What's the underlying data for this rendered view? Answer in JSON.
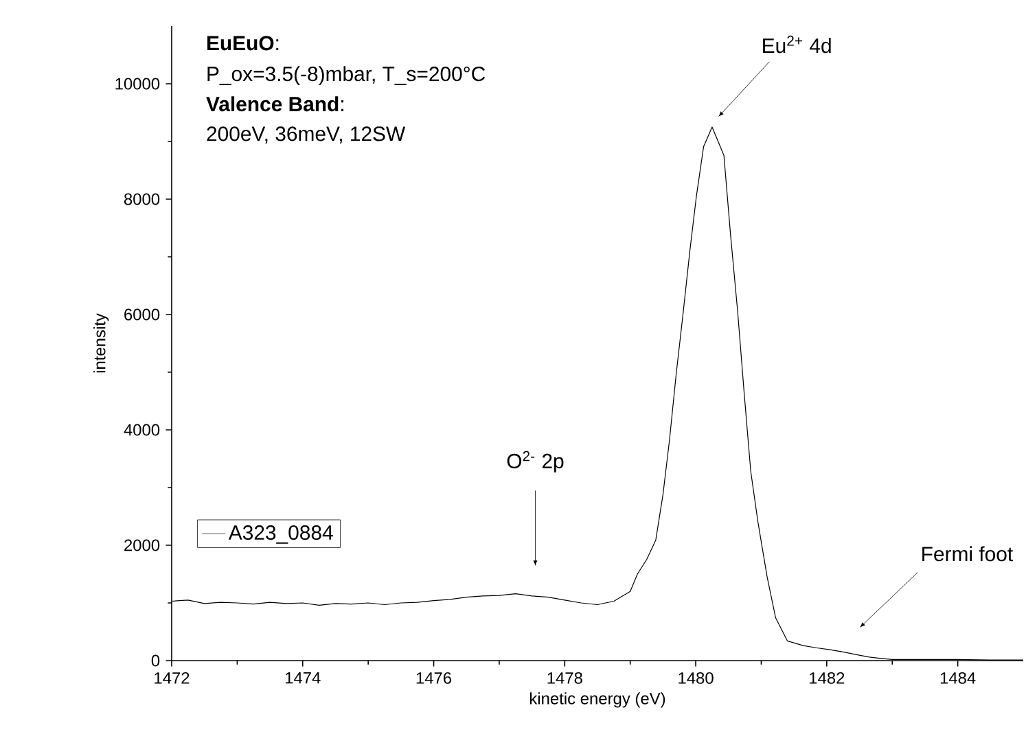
{
  "chart_data": {
    "type": "line",
    "xlabel": "kinetic energy (eV)",
    "ylabel": "intensity",
    "xlim": [
      1472,
      1485
    ],
    "ylim": [
      0,
      11000
    ],
    "xticks": [
      1472,
      1474,
      1476,
      1478,
      1480,
      1482,
      1484
    ],
    "yticks": [
      0,
      2000,
      4000,
      6000,
      8000,
      10000
    ],
    "legend": "left",
    "grid": false,
    "marker": "none",
    "line_style": "solid",
    "annotations": [
      "**EuEuO**:",
      "P_ox=3.5(-8)mbar, T_s=200°C",
      "**Valence Band**:",
      "200eV, 36meV, 12SW",
      "Eu$^{2+}$ 4d",
      "O$^{2-}$ 2p",
      "Fermi foot"
    ],
    "series": [
      {
        "name": "A323_0884",
        "color": "#000000",
        "x": [
          1472.0,
          1472.25,
          1472.5,
          1472.75,
          1473.0,
          1473.25,
          1473.5,
          1473.75,
          1474.0,
          1474.25,
          1474.5,
          1474.75,
          1475.0,
          1475.25,
          1475.5,
          1475.75,
          1476.0,
          1476.25,
          1476.5,
          1476.75,
          1477.0,
          1477.25,
          1477.5,
          1477.75,
          1478.0,
          1478.25,
          1478.5,
          1478.75,
          1479.0,
          1479.11,
          1479.25,
          1479.39,
          1479.5,
          1479.6,
          1479.7,
          1479.81,
          1479.91,
          1480.01,
          1480.12,
          1480.25,
          1480.43,
          1480.53,
          1480.64,
          1480.74,
          1480.84,
          1480.95,
          1481.09,
          1481.22,
          1481.4,
          1481.64,
          1481.85,
          1482.05,
          1482.25,
          1482.47,
          1482.65,
          1482.81,
          1483.0,
          1483.5,
          1484.0,
          1484.5,
          1485.0
        ],
        "values": [
          1030,
          1050,
          990,
          1010,
          1000,
          980,
          1010,
          990,
          1000,
          960,
          990,
          980,
          1000,
          970,
          1000,
          1010,
          1040,
          1060,
          1100,
          1120,
          1130,
          1160,
          1120,
          1100,
          1050,
          1000,
          970,
          1030,
          1200,
          1500,
          1750,
          2090,
          2880,
          3830,
          4950,
          6050,
          7100,
          8050,
          8910,
          9250,
          8760,
          7400,
          6050,
          4630,
          3280,
          2400,
          1450,
          740,
          340,
          260,
          220,
          190,
          150,
          100,
          60,
          40,
          20,
          20,
          20,
          10,
          10
        ]
      }
    ]
  }
}
